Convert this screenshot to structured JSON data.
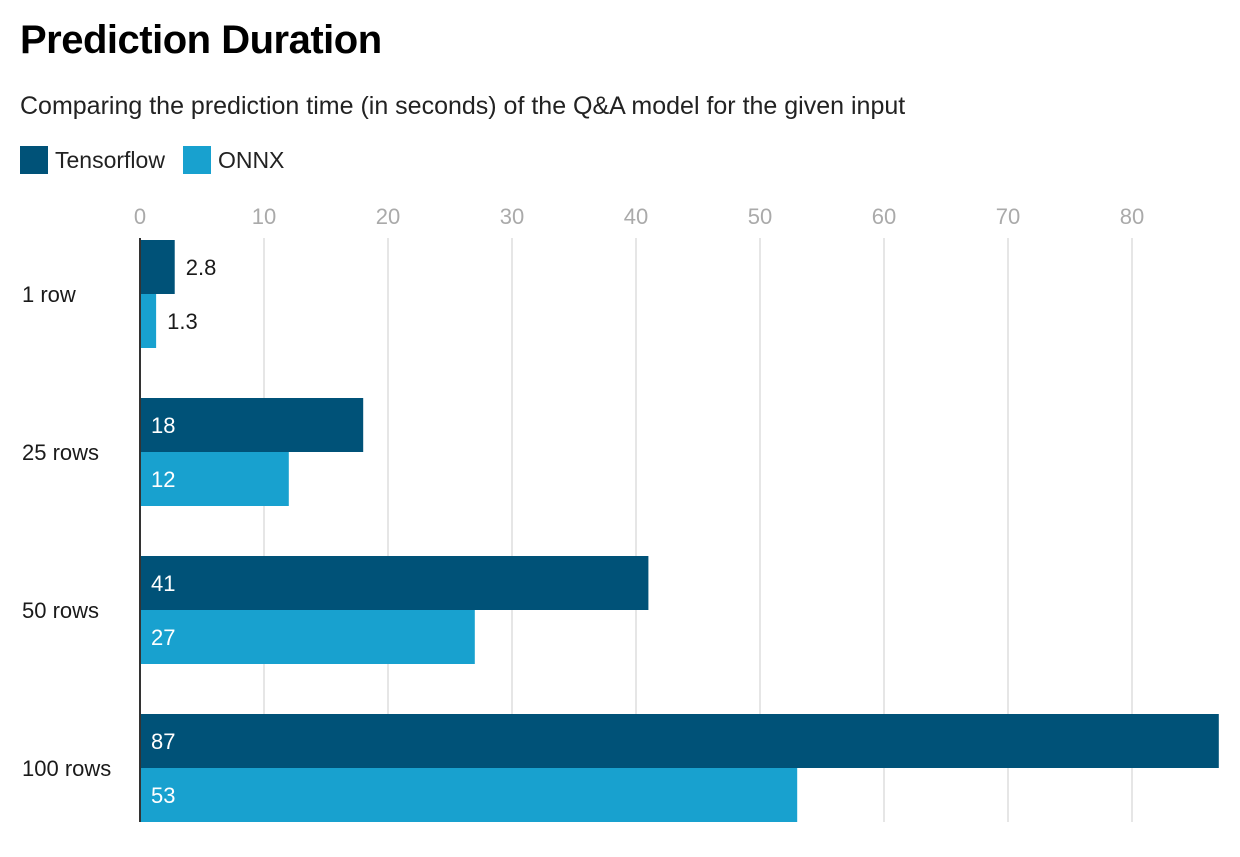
{
  "title": "Prediction Duration",
  "subtitle": "Comparing the prediction time (in seconds) of the Q&A model for the given input",
  "colors": {
    "tensorflow": "#005278",
    "onnx": "#18a1cf",
    "grid": "#dddddd",
    "tick_text": "#aaaaaa",
    "axis": "#333333"
  },
  "chart_data": {
    "type": "bar",
    "orientation": "horizontal",
    "title": "Prediction Duration",
    "subtitle": "Comparing the prediction time (in seconds) of the Q&A model for the given input",
    "categories": [
      "1 row",
      "25 rows",
      "50 rows",
      "100 rows"
    ],
    "series": [
      {
        "name": "Tensorflow",
        "values": [
          2.8,
          18,
          41,
          87
        ],
        "labels": [
          "2.8",
          "18",
          "41",
          "87"
        ]
      },
      {
        "name": "ONNX",
        "values": [
          1.3,
          12,
          27,
          53
        ],
        "labels": [
          "1.3",
          "12",
          "27",
          "53"
        ]
      }
    ],
    "xlim": [
      0,
      87
    ],
    "xticks": [
      0,
      10,
      20,
      30,
      40,
      50,
      60,
      70,
      80
    ],
    "xtick_labels": [
      "0",
      "10",
      "20",
      "30",
      "40",
      "50",
      "60",
      "70",
      "80"
    ],
    "grid": true,
    "legend": "top-left",
    "xaxis_position": "top"
  }
}
